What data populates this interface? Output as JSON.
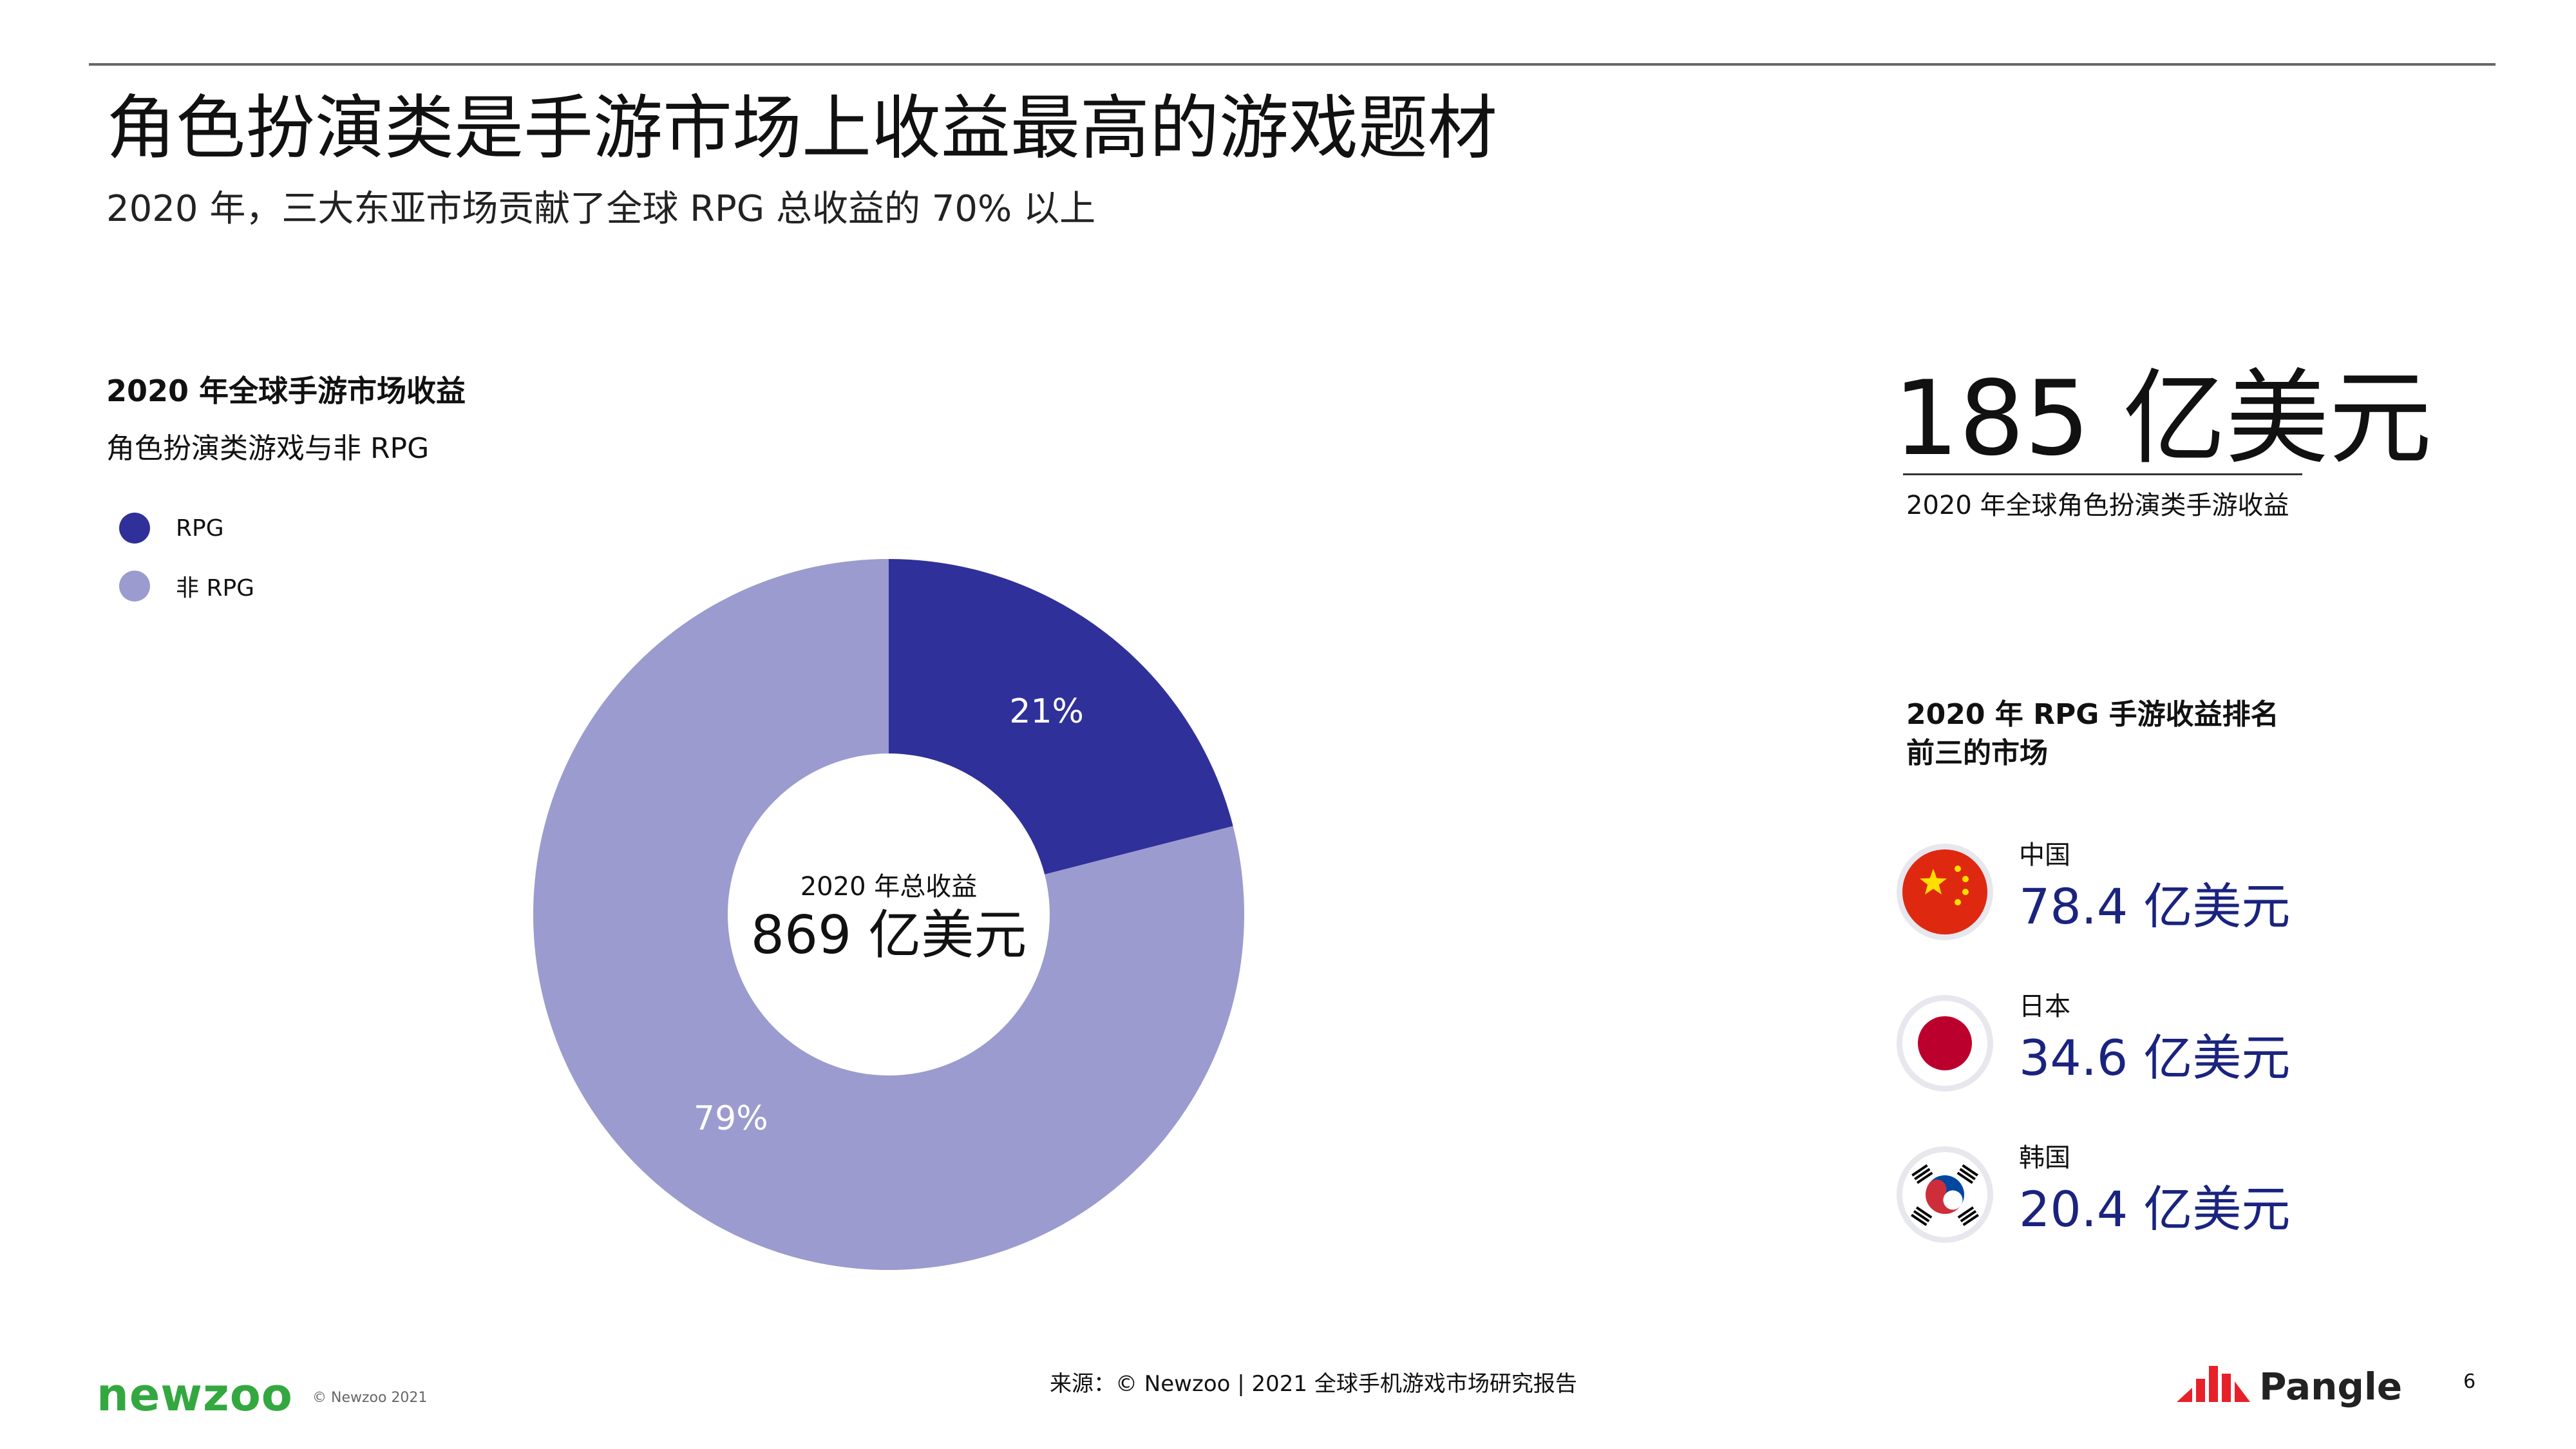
{
  "header": {
    "title": "角色扮演类是手游市场上收益最高的游戏题材",
    "subtitle": "2020 年，三大东亚市场贡献了全球 RPG 总收益的 70% 以上"
  },
  "chart_data": {
    "type": "pie",
    "title": "2020 年全球手游市场收益",
    "subtitle": "角色扮演类游戏与非 RPG",
    "series": [
      {
        "name": "RPG",
        "value": 21,
        "label": "21%",
        "color": "#30309a"
      },
      {
        "name": "非 RPG",
        "value": 79,
        "label": "79%",
        "color": "#9b9bcf"
      }
    ],
    "center_caption": "2020 年总收益",
    "center_value": "869 亿美元",
    "legend_position": "top-left"
  },
  "highlight": {
    "value": "185 亿美元",
    "caption": "2020 年全球角色扮演类手游收益"
  },
  "markets": {
    "title": "2020 年 RPG 手游收益排名前三的市场",
    "items": [
      {
        "name": "中国",
        "value": "78.4 亿美元",
        "flag_icon": "china-flag-icon"
      },
      {
        "name": "日本",
        "value": "34.6 亿美元",
        "flag_icon": "japan-flag-icon"
      },
      {
        "name": "韩国",
        "value": "20.4 亿美元",
        "flag_icon": "korea-flag-icon"
      }
    ]
  },
  "footer": {
    "logo_text": "newzoo",
    "copyright": "© Newzoo 2021",
    "source": "来源：© Newzoo | 2021 全球手机游戏市场研究报告",
    "brand_text": "Pangle",
    "page_number": "6"
  },
  "colors": {
    "rpg": "#30309a",
    "non_rpg": "#9b9bcf",
    "market_value": "#1a237e",
    "newzoo_green": "#34a840",
    "pangle_red": "#e8202a"
  }
}
